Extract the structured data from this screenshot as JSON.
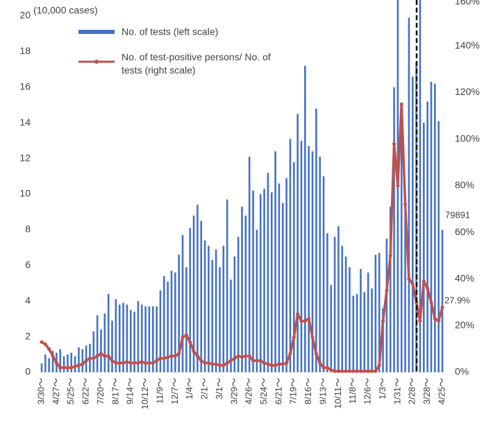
{
  "chart_data": {
    "type": "bar-line",
    "annotations": [
      "(10,000 cases)",
      "79891",
      "27.9%"
    ],
    "categories": [
      "3/30～",
      null,
      null,
      null,
      "4/27～",
      null,
      null,
      null,
      "5/25～",
      null,
      null,
      null,
      "6/22～",
      null,
      null,
      null,
      "7/20～",
      null,
      null,
      null,
      "8/17～",
      null,
      null,
      null,
      "9/14～",
      null,
      null,
      null,
      "10/12～",
      null,
      null,
      null,
      "11/9～",
      null,
      null,
      null,
      "12/7～",
      null,
      null,
      null,
      "1/4～",
      null,
      null,
      null,
      "2/1～",
      null,
      null,
      null,
      "3/1～",
      null,
      null,
      null,
      "3/29～",
      null,
      null,
      null,
      "4/26～",
      null,
      null,
      null,
      "5/24～",
      null,
      null,
      null,
      "6/21～",
      null,
      null,
      null,
      "7/19～",
      null,
      null,
      null,
      "8/16～",
      null,
      null,
      null,
      "9/13～",
      null,
      null,
      null,
      "10/11～",
      null,
      null,
      null,
      "11/8～",
      null,
      null,
      null,
      "12/6～",
      null,
      null,
      null,
      "1/3～",
      null,
      null,
      null,
      "1/31～",
      null,
      null,
      null,
      "2/28～",
      null,
      null,
      null,
      "3/28～",
      null,
      null,
      null,
      "4/25～"
    ],
    "series": [
      {
        "name": "No. of tests (left scale)",
        "color": "#4472c4",
        "axis": "y",
        "values": [
          0.5,
          1.0,
          0.8,
          1.2,
          1.1,
          1.3,
          0.9,
          1.0,
          1.1,
          0.9,
          1.4,
          1.3,
          1.5,
          1.6,
          2.3,
          3.2,
          2.4,
          3.3,
          4.4,
          2.9,
          4.1,
          3.8,
          3.9,
          3.8,
          3.5,
          3.4,
          4.0,
          3.8,
          3.7,
          3.7,
          3.7,
          3.7,
          4.6,
          5.4,
          5.1,
          5.7,
          5.6,
          6.6,
          7.7,
          5.9,
          8.1,
          8.8,
          9.4,
          8.5,
          7.4,
          7.1,
          6.3,
          6.9,
          5.9,
          7.1,
          9.7,
          5.2,
          6.5,
          7.6,
          9.3,
          8.8,
          12.1,
          10.2,
          8.0,
          10.0,
          10.3,
          11.2,
          10.1,
          12.4,
          10.6,
          9.5,
          10.9,
          13.1,
          11.8,
          14.5,
          13.0,
          17.2,
          12.7,
          12.4,
          14.8,
          12.1,
          11.0,
          7.8,
          4.9,
          7.6,
          8.2,
          7.1,
          6.5,
          5.9,
          4.3,
          4.4,
          5.8,
          4.5,
          5.6,
          4.7,
          6.6,
          6.7,
          3.6,
          7.5,
          9.3,
          16.0,
          21.5,
          13.7,
          9.0,
          19.9,
          16.6,
          17.4,
          21.0,
          14.0,
          15.2,
          16.3,
          16.2,
          14.1,
          7.9891
        ]
      },
      {
        "name": "No. of test-positive persons/ No. of tests (right scale)",
        "color": "#c0504d",
        "axis": "y2",
        "values": [
          13,
          12,
          10,
          7,
          4,
          2,
          2,
          2,
          2,
          2.5,
          3,
          3.5,
          5,
          6,
          6,
          7,
          8,
          7,
          7,
          5,
          4,
          4,
          4,
          4.5,
          4,
          4,
          4,
          4.5,
          4,
          4,
          4,
          5,
          6,
          6,
          6.5,
          7,
          7,
          8,
          15,
          16,
          13,
          9,
          7,
          5,
          4,
          4,
          3.5,
          3.5,
          3,
          3,
          4,
          5,
          6,
          7,
          6.5,
          7,
          7,
          5,
          5,
          5,
          4,
          3.5,
          3,
          3,
          3.5,
          3.5,
          4,
          8,
          15,
          25,
          22,
          22,
          23,
          15,
          8,
          4,
          2,
          2,
          1,
          0.5,
          0.5,
          0.5,
          0.5,
          0.5,
          0.5,
          0.5,
          0.5,
          0.5,
          0.5,
          0.5,
          0.5,
          3,
          22,
          35,
          50,
          98,
          80,
          115,
          72,
          40,
          38,
          30,
          22,
          39,
          36,
          30,
          23,
          22,
          27.9
        ]
      }
    ],
    "ylim": [
      0,
      20
    ],
    "yticks": [
      0,
      2,
      4,
      6,
      8,
      10,
      12,
      14,
      16,
      18,
      20
    ],
    "y2lim": [
      0,
      160
    ],
    "y2ticks": [
      {
        "value": 0,
        "label": "0%"
      },
      {
        "value": 20,
        "label": "20%"
      },
      {
        "value": 40,
        "label": "40%"
      },
      {
        "value": 60,
        "label": "60%"
      },
      {
        "value": 80,
        "label": "80%"
      },
      {
        "value": 100,
        "label": "100%"
      },
      {
        "value": 120,
        "label": "120%"
      },
      {
        "value": 140,
        "label": "140%"
      },
      {
        "value": 160,
        "label": "160%"
      }
    ]
  }
}
